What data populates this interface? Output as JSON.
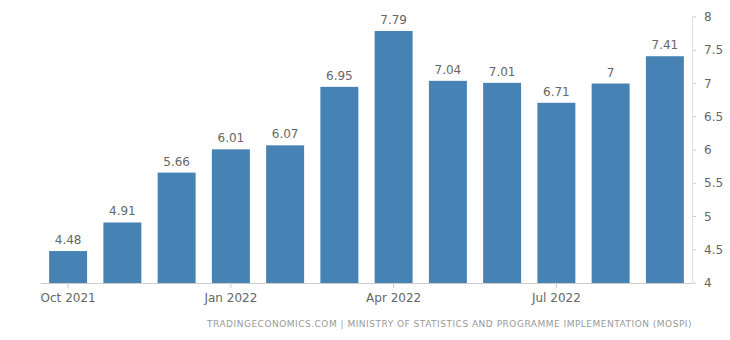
{
  "chart_data": {
    "type": "bar",
    "categories": [
      "Oct 2021",
      null,
      null,
      "Jan 2022",
      null,
      null,
      "Apr 2022",
      null,
      null,
      "Jul 2022",
      null,
      null
    ],
    "values": [
      4.48,
      4.91,
      5.66,
      6.01,
      6.07,
      6.95,
      7.79,
      7.04,
      7.01,
      6.71,
      7,
      7.41
    ],
    "color": "#4682b4",
    "ylim": [
      4,
      8
    ],
    "yticks": [
      4,
      4.5,
      5,
      5.5,
      6,
      6.5,
      7,
      7.5,
      8
    ],
    "grid": false,
    "data_labels": true,
    "source": "TRADINGECONOMICS.COM | MINISTRY OF STATISTICS AND PROGRAMME IMPLEMENTATION (MOSPI)"
  }
}
